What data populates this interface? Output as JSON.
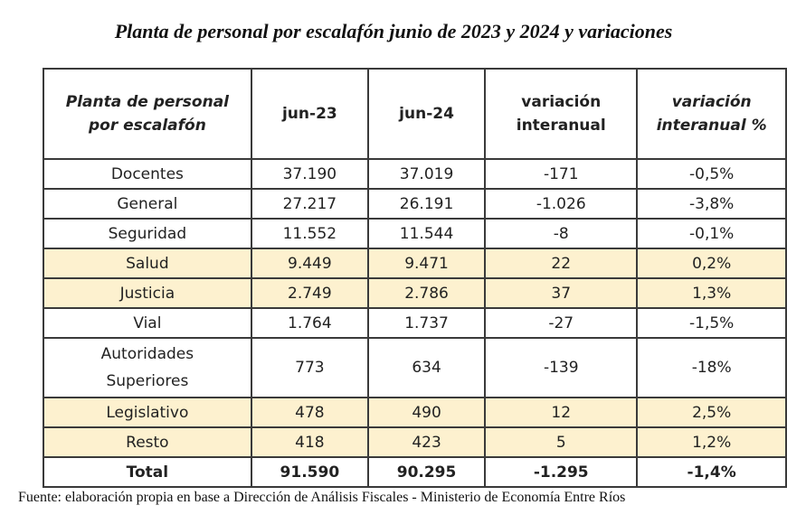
{
  "title": "Planta de personal por escalafón junio de 2023 y 2024 y variaciones",
  "headers": [
    "Planta de personal por escalafón",
    "jun-23",
    "jun-24",
    "variación interanual",
    "variación interanual %"
  ],
  "rows": [
    {
      "label": "Docentes",
      "values": [
        "37.190",
        "37.019",
        "-171",
        "-0,5%"
      ],
      "highlight": false
    },
    {
      "label": "General",
      "values": [
        "27.217",
        "26.191",
        "-1.026",
        "-3,8%"
      ],
      "highlight": false
    },
    {
      "label": "Seguridad",
      "values": [
        "11.552",
        "11.544",
        "-8",
        "-0,1%"
      ],
      "highlight": false
    },
    {
      "label": "Salud",
      "values": [
        "9.449",
        "9.471",
        "22",
        "0,2%"
      ],
      "highlight": true
    },
    {
      "label": "Justicia",
      "values": [
        "2.749",
        "2.786",
        "37",
        "1,3%"
      ],
      "highlight": true
    },
    {
      "label": "Vial",
      "values": [
        "1.764",
        "1.737",
        "-27",
        "-1,5%"
      ],
      "highlight": false
    },
    {
      "label": "Autoridades Superiores",
      "values": [
        "773",
        "634",
        "-139",
        "-18%"
      ],
      "highlight": false
    },
    {
      "label": "Legislativo",
      "values": [
        "478",
        "490",
        "12",
        "2,5%"
      ],
      "highlight": true
    },
    {
      "label": "Resto",
      "values": [
        "418",
        "423",
        "5",
        "1,2%"
      ],
      "highlight": true
    }
  ],
  "total": {
    "label": "Total",
    "values": [
      "91.590",
      "90.295",
      "-1.295",
      "-1,4%"
    ]
  },
  "highlight_color": "#fdf1cf",
  "footer": "Fuente: elaboración propia en base a Dirección de Análisis Fiscales - Ministerio de Economía Entre Ríos"
}
